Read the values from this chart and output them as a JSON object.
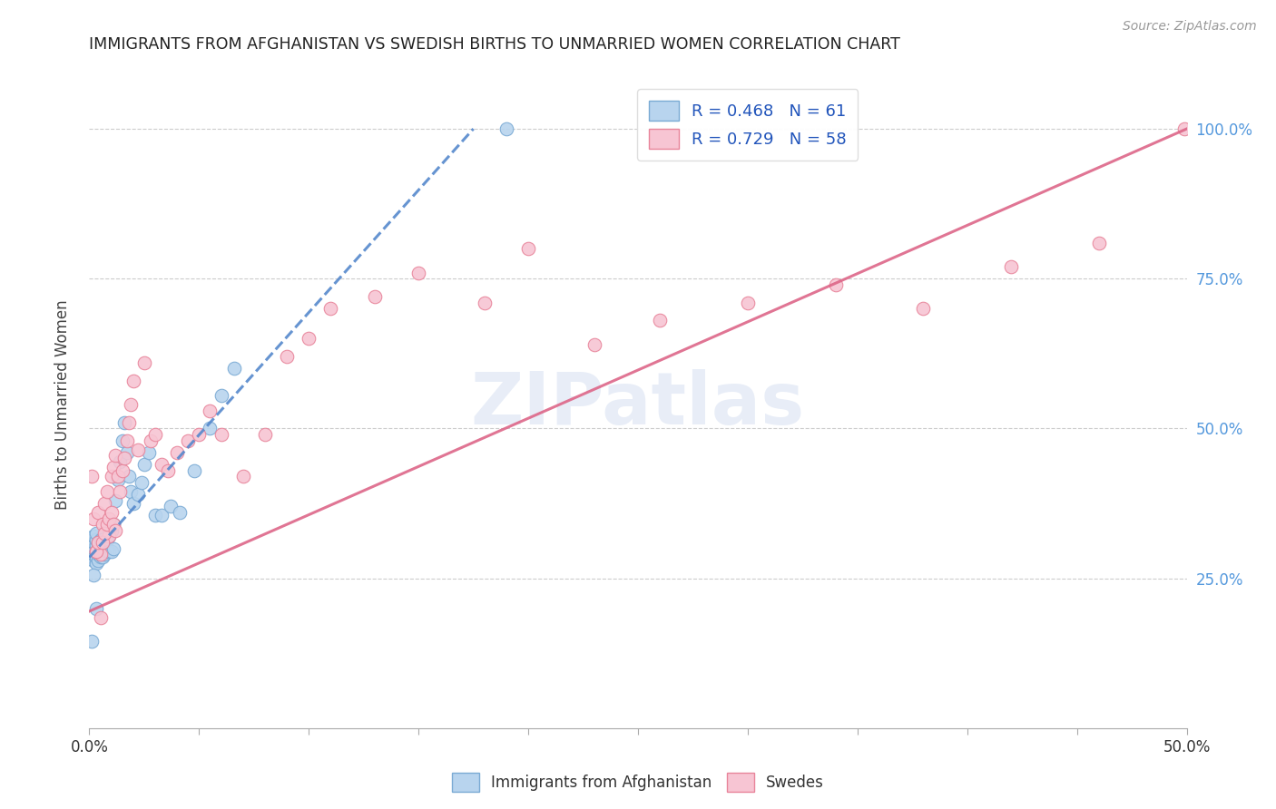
{
  "title": "IMMIGRANTS FROM AFGHANISTAN VS SWEDISH BIRTHS TO UNMARRIED WOMEN CORRELATION CHART",
  "source": "Source: ZipAtlas.com",
  "ylabel": "Births to Unmarried Women",
  "right_yticks": [
    "25.0%",
    "50.0%",
    "75.0%",
    "100.0%"
  ],
  "legend1_label": "R = 0.468   N = 61",
  "legend2_label": "R = 0.729   N = 58",
  "legend_label1": "Immigrants from Afghanistan",
  "legend_label2": "Swedes",
  "blue_color": "#b8d4ee",
  "blue_edge": "#7aaad4",
  "pink_color": "#f7c5d3",
  "pink_edge": "#e8849a",
  "line_blue": "#5588cc",
  "line_pink": "#dd6688",
  "watermark": "ZIPatlas",
  "blue_x": [
    0.001,
    0.001,
    0.001,
    0.001,
    0.002,
    0.002,
    0.002,
    0.002,
    0.002,
    0.002,
    0.003,
    0.003,
    0.003,
    0.003,
    0.003,
    0.003,
    0.004,
    0.004,
    0.004,
    0.004,
    0.005,
    0.005,
    0.005,
    0.006,
    0.006,
    0.006,
    0.007,
    0.007,
    0.008,
    0.008,
    0.009,
    0.009,
    0.01,
    0.01,
    0.011,
    0.011,
    0.012,
    0.013,
    0.014,
    0.015,
    0.016,
    0.017,
    0.018,
    0.019,
    0.02,
    0.022,
    0.024,
    0.025,
    0.027,
    0.03,
    0.033,
    0.037,
    0.041,
    0.048,
    0.055,
    0.06,
    0.066,
    0.001,
    0.002,
    0.003,
    0.19
  ],
  "blue_y": [
    0.285,
    0.295,
    0.305,
    0.315,
    0.28,
    0.29,
    0.295,
    0.3,
    0.31,
    0.32,
    0.275,
    0.285,
    0.295,
    0.305,
    0.315,
    0.325,
    0.28,
    0.29,
    0.3,
    0.31,
    0.285,
    0.3,
    0.315,
    0.285,
    0.3,
    0.315,
    0.29,
    0.31,
    0.295,
    0.315,
    0.295,
    0.32,
    0.295,
    0.33,
    0.3,
    0.34,
    0.38,
    0.415,
    0.445,
    0.48,
    0.51,
    0.46,
    0.42,
    0.395,
    0.375,
    0.39,
    0.41,
    0.44,
    0.46,
    0.355,
    0.355,
    0.37,
    0.36,
    0.43,
    0.5,
    0.555,
    0.6,
    0.145,
    0.255,
    0.2,
    1.0
  ],
  "pink_x": [
    0.001,
    0.002,
    0.003,
    0.004,
    0.005,
    0.006,
    0.007,
    0.008,
    0.009,
    0.01,
    0.011,
    0.012,
    0.013,
    0.014,
    0.015,
    0.016,
    0.017,
    0.018,
    0.019,
    0.02,
    0.022,
    0.025,
    0.028,
    0.03,
    0.033,
    0.036,
    0.04,
    0.045,
    0.05,
    0.055,
    0.06,
    0.07,
    0.08,
    0.09,
    0.1,
    0.11,
    0.13,
    0.15,
    0.18,
    0.2,
    0.23,
    0.26,
    0.3,
    0.34,
    0.38,
    0.42,
    0.46,
    0.499,
    0.003,
    0.004,
    0.005,
    0.006,
    0.007,
    0.008,
    0.009,
    0.01,
    0.011,
    0.012
  ],
  "pink_y": [
    0.42,
    0.35,
    0.295,
    0.36,
    0.29,
    0.34,
    0.375,
    0.395,
    0.32,
    0.42,
    0.435,
    0.455,
    0.42,
    0.395,
    0.43,
    0.45,
    0.48,
    0.51,
    0.54,
    0.58,
    0.465,
    0.61,
    0.48,
    0.49,
    0.44,
    0.43,
    0.46,
    0.48,
    0.49,
    0.53,
    0.49,
    0.42,
    0.49,
    0.62,
    0.65,
    0.7,
    0.72,
    0.76,
    0.71,
    0.8,
    0.64,
    0.68,
    0.71,
    0.74,
    0.7,
    0.77,
    0.81,
    1.0,
    0.295,
    0.31,
    0.185,
    0.31,
    0.325,
    0.34,
    0.35,
    0.36,
    0.34,
    0.33
  ],
  "blue_trendline_x": [
    0.0,
    0.175
  ],
  "blue_trendline_y": [
    0.285,
    1.0
  ],
  "pink_trendline_x": [
    0.0,
    0.5
  ],
  "pink_trendline_y": [
    0.195,
    1.0
  ],
  "xlim": [
    0.0,
    0.5
  ],
  "ylim": [
    0.0,
    1.08
  ],
  "ytick_positions": [
    0.25,
    0.5,
    0.75,
    1.0
  ],
  "xtick_vals": [
    0.0,
    0.05,
    0.1,
    0.15,
    0.2,
    0.25,
    0.3,
    0.35,
    0.4,
    0.45,
    0.5
  ],
  "grid_color": "#cccccc",
  "background_color": "#ffffff",
  "title_color": "#222222",
  "source_color": "#999999",
  "ylabel_color": "#444444",
  "right_tick_color": "#5599dd"
}
